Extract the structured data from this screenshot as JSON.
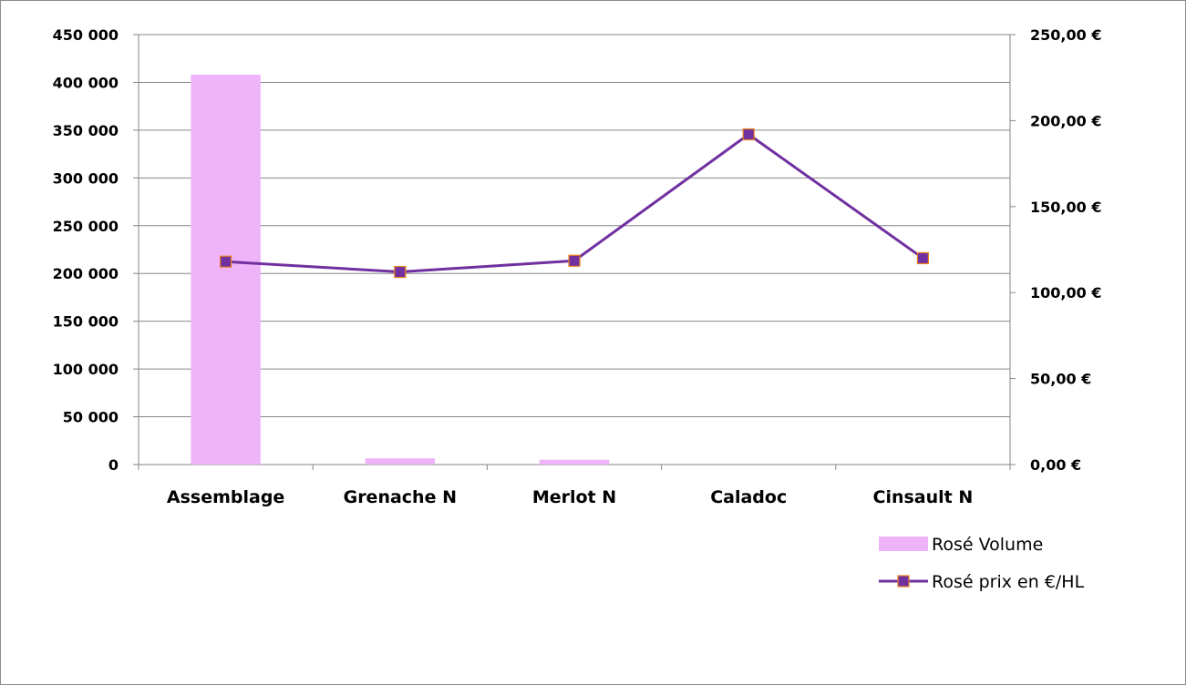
{
  "chart_data": {
    "type": "bar+line",
    "categories": [
      "Assemblage",
      "Grenache N",
      "Merlot N",
      "Caladoc",
      "Cinsault N"
    ],
    "series": [
      {
        "name": "Rosé Volume",
        "type": "bar",
        "axis": "left",
        "color": "#EEB3F8",
        "values": [
          408000,
          6500,
          5000,
          0,
          0
        ]
      },
      {
        "name": "Rosé prix en €/HL",
        "type": "line",
        "axis": "right",
        "color": "#7030A0",
        "marker_color": "#7030A0",
        "marker_border": "#E8821E",
        "values": [
          118,
          112,
          118.5,
          192,
          120
        ]
      }
    ],
    "left_axis": {
      "ylim": [
        0,
        450000
      ],
      "ticks": [
        "0",
        "50 000",
        "100 000",
        "150 000",
        "200 000",
        "250 000",
        "300 000",
        "350 000",
        "400 000",
        "450 000"
      ]
    },
    "right_axis": {
      "ylim": [
        0,
        250
      ],
      "ticks": [
        "0,00 €",
        "50,00 €",
        "100,00 €",
        "150,00 €",
        "200,00 €",
        "250,00 €"
      ]
    },
    "grid": true,
    "legend_position": "bottom-right",
    "title": "",
    "xlabel": "",
    "ylabel": ""
  }
}
